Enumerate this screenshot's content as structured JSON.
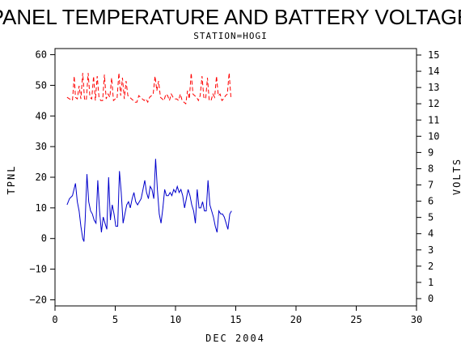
{
  "chart_data": {
    "type": "line",
    "title": "PANEL TEMPERATURE AND BATTERY VOLTAGE",
    "subtitle": "STATION=HOGI",
    "xlabel": "DEC 2004",
    "ylabel_left": "TPNL",
    "ylabel_right": "VOLTS",
    "xlim": [
      0,
      30
    ],
    "ylim_left": [
      -22,
      62
    ],
    "ylim_right": [
      0,
      15
    ],
    "x_ticks": [
      0,
      5,
      10,
      15,
      20,
      25,
      30
    ],
    "y_ticks_left": [
      -20,
      -10,
      0,
      10,
      20,
      30,
      40,
      50,
      60
    ],
    "y_ticks_right": [
      0,
      1,
      2,
      3,
      4,
      5,
      6,
      7,
      8,
      9,
      10,
      11,
      12,
      13,
      14,
      15
    ],
    "grid": false,
    "series": [
      {
        "axis": "left",
        "color": "#0000cc",
        "style": "solid",
        "x": [
          1.0,
          1.2,
          1.45,
          1.7,
          1.85,
          2.0,
          2.15,
          2.3,
          2.4,
          2.5,
          2.65,
          2.8,
          2.95,
          3.1,
          3.25,
          3.4,
          3.55,
          3.7,
          3.85,
          4.0,
          4.15,
          4.3,
          4.45,
          4.6,
          4.75,
          4.9,
          5.05,
          5.2,
          5.35,
          5.5,
          5.65,
          5.8,
          5.95,
          6.1,
          6.25,
          6.4,
          6.55,
          6.7,
          6.85,
          7.0,
          7.15,
          7.3,
          7.45,
          7.6,
          7.75,
          7.9,
          8.05,
          8.2,
          8.35,
          8.5,
          8.65,
          8.8,
          8.95,
          9.1,
          9.25,
          9.4,
          9.55,
          9.7,
          9.85,
          10.0,
          10.15,
          10.3,
          10.45,
          10.6,
          10.75,
          10.9,
          11.05,
          11.2,
          11.35,
          11.5,
          11.65,
          11.8,
          11.95,
          12.1,
          12.25,
          12.4,
          12.55,
          12.7,
          12.85,
          13.0,
          13.15,
          13.3,
          13.45,
          13.6,
          13.75,
          13.9,
          14.05,
          14.2,
          14.35,
          14.5,
          14.65
        ],
        "values": [
          11,
          13,
          14,
          18,
          12,
          9,
          4,
          0,
          -1,
          6,
          21,
          12,
          9,
          8,
          6,
          5,
          19,
          9,
          2,
          7,
          5,
          3,
          20,
          6,
          11,
          8,
          4,
          4,
          22,
          15,
          5,
          8,
          11,
          12,
          10,
          13,
          15,
          12,
          11,
          12,
          13,
          16,
          19,
          15,
          13,
          17,
          16,
          13,
          26,
          16,
          8,
          5,
          10,
          16,
          14,
          14,
          15,
          14,
          16,
          15,
          17,
          15,
          16,
          14,
          10,
          13,
          16,
          14,
          11,
          9,
          5,
          16,
          10,
          10,
          12,
          9,
          9,
          19,
          11,
          9,
          7,
          4,
          2,
          9,
          8,
          8,
          7,
          5,
          3,
          8,
          9
        ]
      },
      {
        "axis": "right",
        "color": "#ff0000",
        "style": "dashed",
        "x": [
          1.0,
          1.2,
          1.45,
          1.6,
          1.7,
          1.85,
          2.0,
          2.15,
          2.3,
          2.45,
          2.6,
          2.75,
          2.9,
          3.05,
          3.2,
          3.35,
          3.5,
          3.65,
          3.8,
          3.95,
          4.1,
          4.25,
          4.4,
          4.55,
          4.7,
          4.85,
          5.0,
          5.15,
          5.3,
          5.45,
          5.6,
          5.75,
          5.9,
          6.05,
          6.2,
          6.35,
          6.5,
          6.65,
          6.8,
          6.95,
          7.1,
          7.25,
          7.4,
          7.55,
          7.7,
          7.85,
          8.0,
          8.15,
          8.3,
          8.45,
          8.6,
          8.75,
          8.9,
          9.05,
          9.2,
          9.35,
          9.5,
          9.65,
          9.8,
          9.95,
          10.1,
          10.25,
          10.4,
          10.55,
          10.7,
          10.85,
          11.0,
          11.15,
          11.3,
          11.45,
          11.6,
          11.75,
          11.9,
          12.05,
          12.2,
          12.35,
          12.5,
          12.65,
          12.8,
          12.95,
          13.1,
          13.25,
          13.4,
          13.55,
          13.7,
          13.85,
          14.0,
          14.15,
          14.3,
          14.45,
          14.6
        ],
        "values": [
          12.4,
          12.3,
          12.2,
          13.7,
          12.4,
          12.3,
          13.1,
          12.3,
          13.9,
          12.3,
          12.2,
          13.9,
          12.4,
          12.3,
          13.7,
          12.2,
          13.7,
          12.4,
          12.2,
          12.2,
          13.8,
          12.3,
          12.6,
          12.4,
          13.6,
          12.2,
          12.3,
          12.3,
          13.9,
          12.5,
          13.6,
          12.3,
          13.4,
          12.5,
          12.4,
          12.3,
          12.2,
          12.1,
          12.1,
          12.5,
          12.4,
          12.3,
          12.2,
          12.3,
          12.1,
          12.4,
          12.5,
          12.6,
          13.7,
          12.8,
          13.4,
          12.4,
          12.3,
          12.2,
          12.6,
          12.5,
          12.2,
          12.6,
          12.4,
          12.3,
          12.3,
          12.2,
          12.6,
          12.2,
          12.1,
          12.0,
          12.8,
          12.3,
          13.9,
          12.6,
          12.5,
          12.4,
          12.2,
          12.5,
          13.7,
          12.4,
          12.3,
          13.6,
          12.2,
          12.2,
          12.6,
          12.4,
          13.7,
          12.5,
          12.6,
          12.2,
          12.3,
          12.5,
          12.6,
          13.9,
          12.4
        ]
      }
    ]
  }
}
